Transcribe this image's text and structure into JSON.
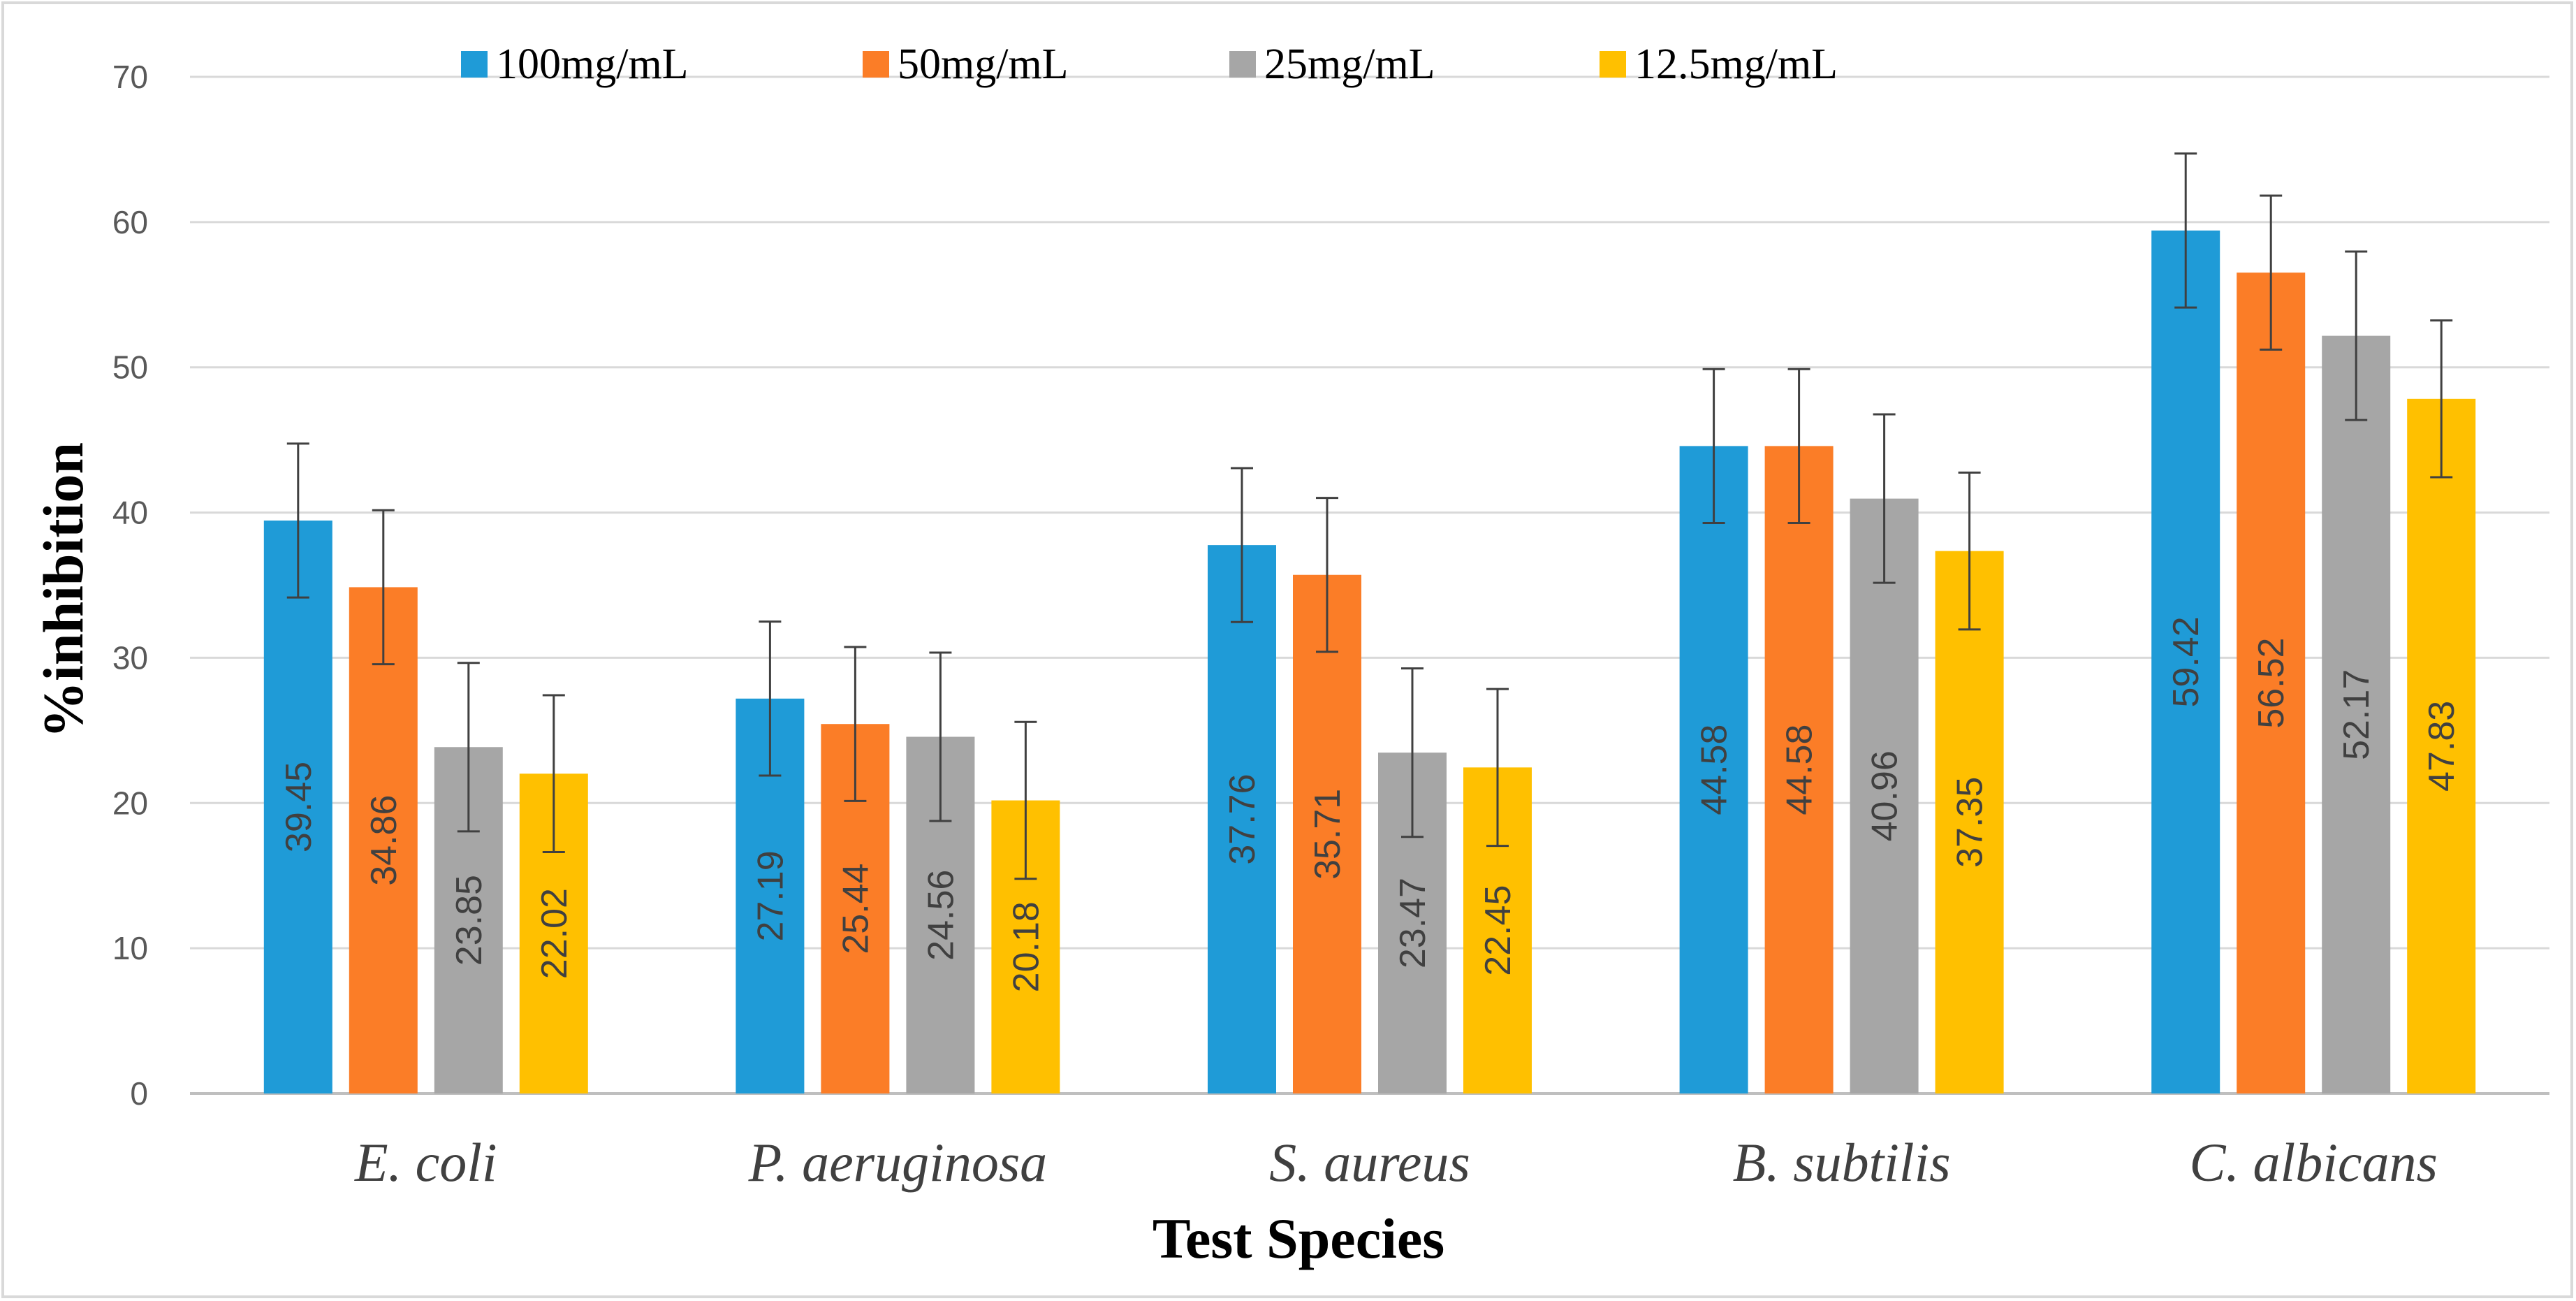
{
  "chart_data": {
    "type": "bar",
    "title": "",
    "xlabel": "Test Species",
    "ylabel": "%inhibition",
    "ylim": [
      0,
      70
    ],
    "yticks": [
      0,
      10,
      20,
      30,
      40,
      50,
      60,
      70
    ],
    "grid": true,
    "legend_position": "top",
    "categories": [
      "E. coli",
      "P. aeruginosa",
      "S. aureus",
      "B. subtilis",
      "C. albicans"
    ],
    "series": [
      {
        "name": "100mg/mL",
        "color": "#1f9bd7",
        "values": [
          39.45,
          27.19,
          37.76,
          44.58,
          59.42
        ],
        "value_labels": [
          "39.45",
          "27.19",
          "37.76",
          "44.58",
          "59.42"
        ],
        "error": [
          5.3,
          5.3,
          5.3,
          5.3,
          5.3
        ]
      },
      {
        "name": "50mg/mL",
        "color": "#fb7d27",
        "values": [
          34.86,
          25.44,
          35.71,
          44.58,
          56.52
        ],
        "value_labels": [
          "34.86",
          "25.44",
          "35.71",
          "44.58",
          "56.52"
        ],
        "error": [
          5.3,
          5.3,
          5.3,
          5.3,
          5.3
        ]
      },
      {
        "name": "25mg/mL",
        "color": "#a6a6a6",
        "values": [
          23.85,
          24.56,
          23.47,
          40.96,
          52.17
        ],
        "value_labels": [
          "23.85",
          "24.56",
          "23.47",
          "40.96",
          "52.17"
        ],
        "error": [
          5.8,
          5.8,
          5.8,
          5.8,
          5.8
        ]
      },
      {
        "name": "12.5mg/mL",
        "color": "#ffc000",
        "values": [
          22.02,
          20.18,
          22.45,
          37.35,
          47.83
        ],
        "value_labels": [
          "22.02",
          "20.18",
          "22.45",
          "37.35",
          "47.83"
        ],
        "error": [
          5.4,
          5.4,
          5.4,
          5.4,
          5.4
        ]
      }
    ]
  }
}
